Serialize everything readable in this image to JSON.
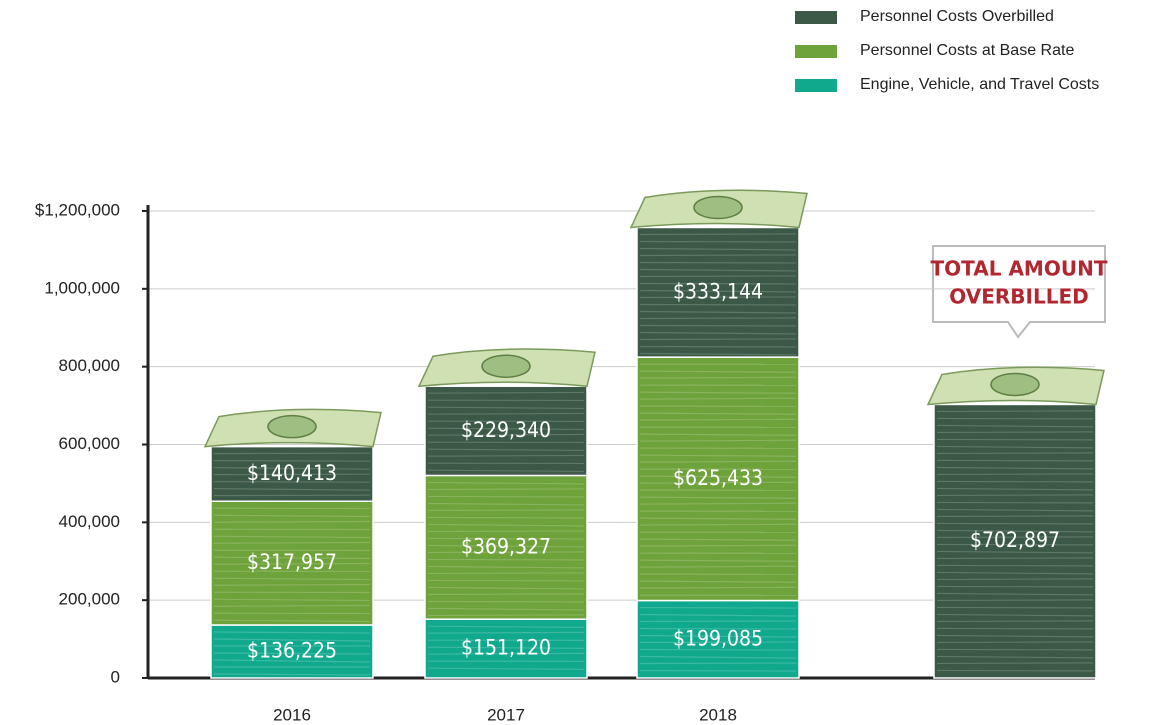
{
  "chart_data": {
    "type": "stacked-bar",
    "categories": [
      "2016",
      "2017",
      "2018",
      null
    ],
    "series": [
      {
        "name": "Engine, Vehicle, and Travel Costs",
        "color": "#10a98e",
        "values": [
          136225,
          151120,
          199085,
          null
        ],
        "value_labels": [
          "$136,225",
          "$151,120",
          "$199,085",
          null
        ]
      },
      {
        "name": "Personnel Costs at Base Rate",
        "color": "#6ea23a",
        "values": [
          317957,
          369327,
          625433,
          null
        ],
        "value_labels": [
          "$317,957",
          "$369,327",
          "$625,433",
          null
        ]
      },
      {
        "name": "Personnel Costs Overbilled",
        "color": "#3b5946",
        "values": [
          140413,
          229340,
          333144,
          702897
        ],
        "value_labels": [
          "$140,413",
          "$229,340",
          "$333,144",
          "$702,897"
        ]
      }
    ],
    "ylim": [
      0,
      1200000
    ],
    "yticks": [
      0,
      {
        "value": 200000,
        "label": "200,000"
      },
      {
        "value": 400000,
        "label": "400,000"
      },
      {
        "value": 600000,
        "label": "600,000"
      },
      {
        "value": 800000,
        "label": "800,000"
      },
      {
        "value": 1000000,
        "label": "1,000,000"
      },
      {
        "value": 1200000,
        "label": "$1,200,000"
      }
    ],
    "grid": true,
    "annotation": [
      "TOTAL AMOUNT",
      "OVERBILLED"
    ]
  }
}
